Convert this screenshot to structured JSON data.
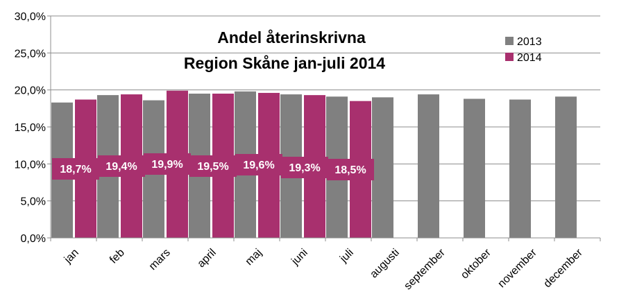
{
  "chart_data": {
    "type": "bar",
    "title_lines": [
      "Andel återinskrivna",
      "Region Skåne jan-juli  2014"
    ],
    "categories": [
      "jan",
      "feb",
      "mars",
      "april",
      "maj",
      "juni",
      "juli",
      "augusti",
      "september",
      "oktober",
      "november",
      "december"
    ],
    "series": [
      {
        "name": "2013",
        "color": "#808080",
        "values": [
          18.3,
          19.3,
          18.6,
          19.5,
          19.8,
          19.4,
          19.1,
          19.0,
          19.4,
          18.8,
          18.7,
          19.1
        ]
      },
      {
        "name": "2014",
        "color": "#A8306E",
        "values": [
          18.7,
          19.4,
          19.9,
          19.5,
          19.6,
          19.3,
          18.5,
          null,
          null,
          null,
          null,
          null
        ]
      }
    ],
    "data_labels": [
      "18,7%",
      "19,4%",
      "19,9%",
      "19,5%",
      "19,6%",
      "19,3%",
      "18,5%"
    ],
    "y_ticks": [
      "0,0%",
      "5,0%",
      "10,0%",
      "15,0%",
      "20,0%",
      "25,0%",
      "30,0%"
    ],
    "ylim": [
      0,
      30
    ],
    "ytick_step": 5,
    "grid": true,
    "legend_position": "top-right",
    "xlabel": "",
    "ylabel": ""
  }
}
